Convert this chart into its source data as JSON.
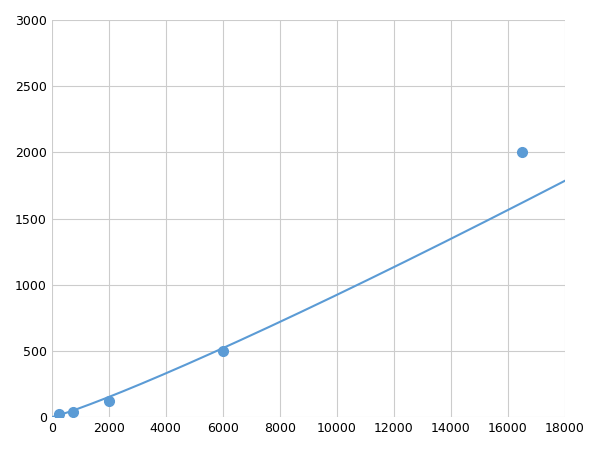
{
  "x_data": [
    250,
    750,
    2000,
    6000,
    16500
  ],
  "y_data": [
    20,
    40,
    120,
    500,
    2000
  ],
  "line_color": "#5b9bd5",
  "marker_color": "#5b9bd5",
  "marker_size": 7,
  "xlim": [
    0,
    18000
  ],
  "ylim": [
    0,
    3000
  ],
  "xticks": [
    0,
    2000,
    4000,
    6000,
    8000,
    10000,
    12000,
    14000,
    16000,
    18000
  ],
  "yticks": [
    0,
    500,
    1000,
    1500,
    2000,
    2500,
    3000
  ],
  "grid_color": "#cccccc",
  "background_color": "#ffffff",
  "figsize": [
    6.0,
    4.5
  ],
  "dpi": 100
}
